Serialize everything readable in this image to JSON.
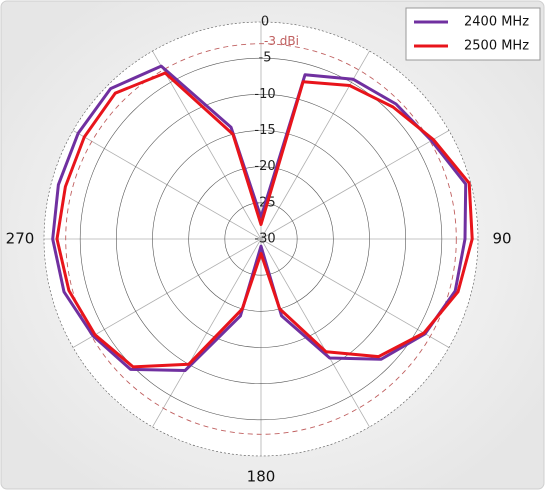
{
  "chart_data": {
    "type": "polar",
    "theta": [
      0,
      15,
      30,
      45,
      60,
      75,
      90,
      105,
      120,
      135,
      150,
      165,
      180,
      195,
      210,
      225,
      240,
      255,
      270,
      285,
      300,
      315,
      330,
      345
    ],
    "series": [
      {
        "name": "2400 MHz",
        "color": "#7030a0",
        "values": [
          -27,
          -6.5,
          -4.5,
          -3.6,
          -2.8,
          -0.7,
          -1.8,
          -2.2,
          -3.8,
          -6.5,
          -11,
          -19,
          -29,
          -19,
          -9,
          -4.5,
          -3.2,
          -1.8,
          -1.2,
          -1.0,
          -0.8,
          -0.6,
          -2.4,
          -14
        ]
      },
      {
        "name": "2500 MHz",
        "color": "#e8141b",
        "values": [
          -28,
          -7.5,
          -5.5,
          -4.2,
          -2.5,
          -0.2,
          -0.8,
          -1.8,
          -4.0,
          -7,
          -12,
          -20,
          -28,
          -20,
          -10,
          -5,
          -3.5,
          -2.5,
          -1.8,
          -2.0,
          -1.8,
          -1.5,
          -3.5,
          -15
        ]
      }
    ],
    "rlim": [
      -30,
      0
    ],
    "rticks": [
      0,
      -5,
      -10,
      -15,
      -20,
      -25,
      -30
    ],
    "thetaticks": [
      90,
      180,
      270
    ],
    "reference": {
      "value": -3,
      "label": "-3 dBi",
      "color": "#c06060"
    },
    "legend": "upper right"
  }
}
